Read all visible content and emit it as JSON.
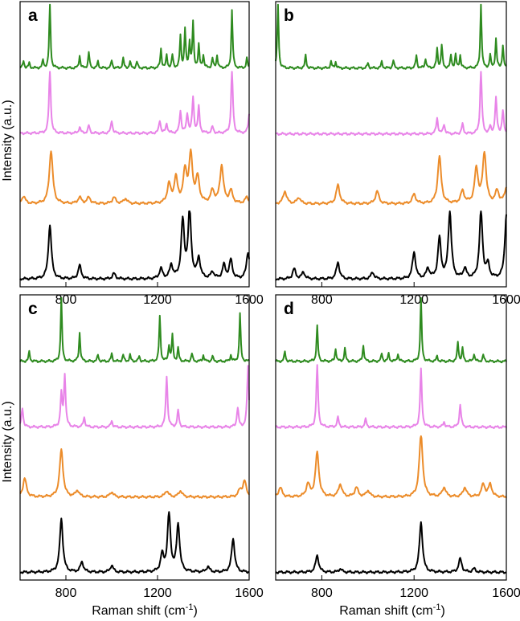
{
  "figure": {
    "ylabel": "Intensity (a.u.)",
    "xlabel_main": "Raman shift (cm",
    "xlabel_sup": "-1",
    "xlabel_close": ")"
  },
  "colors": {
    "green": "#2e8b1f",
    "violet": "#e884e8",
    "orange": "#ec8c2a",
    "black": "#000000"
  },
  "chart_data": [
    {
      "type": "line",
      "panel": "a",
      "xlim": [
        600,
        1600
      ],
      "xticks": [
        800,
        1200,
        1600
      ],
      "y_scale": "arbitrary units, traces vertically offset",
      "series": [
        {
          "color": "green",
          "baseline": 0.03,
          "peaks": [
            [
              615,
              0.12
            ],
            [
              640,
              0.08
            ],
            [
              700,
              0.12
            ],
            [
              730,
              1.0
            ],
            [
              860,
              0.2
            ],
            [
              900,
              0.25
            ],
            [
              940,
              0.1
            ],
            [
              1000,
              0.12
            ],
            [
              1050,
              0.15
            ],
            [
              1080,
              0.1
            ],
            [
              1110,
              0.1
            ],
            [
              1215,
              0.3
            ],
            [
              1240,
              0.2
            ],
            [
              1265,
              0.2
            ],
            [
              1300,
              0.5
            ],
            [
              1320,
              0.6
            ],
            [
              1340,
              0.4
            ],
            [
              1355,
              0.7
            ],
            [
              1380,
              0.35
            ],
            [
              1400,
              0.2
            ],
            [
              1440,
              0.15
            ],
            [
              1460,
              0.2
            ],
            [
              1525,
              0.9
            ],
            [
              1590,
              0.15
            ]
          ]
        },
        {
          "color": "violet",
          "baseline": 0.06,
          "peaks": [
            [
              730,
              1.0
            ],
            [
              860,
              0.1
            ],
            [
              900,
              0.12
            ],
            [
              1000,
              0.2
            ],
            [
              1210,
              0.2
            ],
            [
              1240,
              0.15
            ],
            [
              1300,
              0.35
            ],
            [
              1330,
              0.3
            ],
            [
              1355,
              0.55
            ],
            [
              1380,
              0.4
            ],
            [
              1440,
              0.1
            ],
            [
              1525,
              1.0
            ],
            [
              1600,
              0.3
            ]
          ]
        },
        {
          "color": "orange",
          "baseline": 0.05,
          "peaks": [
            [
              615,
              0.12
            ],
            [
              735,
              0.85
            ],
            [
              860,
              0.1
            ],
            [
              900,
              0.1
            ],
            [
              1010,
              0.1
            ],
            [
              1060,
              0.08
            ],
            [
              1250,
              0.3
            ],
            [
              1280,
              0.4
            ],
            [
              1320,
              0.5
            ],
            [
              1345,
              0.75
            ],
            [
              1375,
              0.4
            ],
            [
              1440,
              0.2
            ],
            [
              1480,
              0.6
            ],
            [
              1520,
              0.2
            ],
            [
              1590,
              0.1
            ]
          ]
        },
        {
          "color": "black",
          "baseline": 0.01,
          "peaks": [
            [
              730,
              0.8
            ],
            [
              860,
              0.2
            ],
            [
              1010,
              0.08
            ],
            [
              1215,
              0.15
            ],
            [
              1260,
              0.2
            ],
            [
              1310,
              0.85
            ],
            [
              1340,
              1.0
            ],
            [
              1380,
              0.3
            ],
            [
              1440,
              0.1
            ],
            [
              1490,
              0.2
            ],
            [
              1520,
              0.28
            ],
            [
              1595,
              0.4
            ]
          ]
        }
      ]
    },
    {
      "type": "line",
      "panel": "b",
      "xlim": [
        600,
        1600
      ],
      "xticks": [
        800,
        1200,
        1600
      ],
      "y_scale": "arbitrary units, traces vertically offset",
      "series": [
        {
          "color": "green",
          "baseline": 0.03,
          "peaks": [
            [
              610,
              1.0
            ],
            [
              730,
              0.2
            ],
            [
              840,
              0.1
            ],
            [
              860,
              0.1
            ],
            [
              1000,
              0.08
            ],
            [
              1060,
              0.1
            ],
            [
              1110,
              0.12
            ],
            [
              1210,
              0.2
            ],
            [
              1250,
              0.15
            ],
            [
              1300,
              0.3
            ],
            [
              1320,
              0.35
            ],
            [
              1360,
              0.2
            ],
            [
              1380,
              0.2
            ],
            [
              1400,
              0.2
            ],
            [
              1490,
              1.0
            ],
            [
              1530,
              0.2
            ],
            [
              1555,
              0.45
            ],
            [
              1585,
              0.35
            ]
          ]
        },
        {
          "color": "violet",
          "baseline": 0.05,
          "peaks": [
            [
              1300,
              0.25
            ],
            [
              1330,
              0.15
            ],
            [
              1410,
              0.15
            ],
            [
              1490,
              1.0
            ],
            [
              1530,
              0.1
            ],
            [
              1555,
              0.55
            ],
            [
              1585,
              0.35
            ]
          ]
        },
        {
          "color": "orange",
          "baseline": 0.05,
          "peaks": [
            [
              640,
              0.2
            ],
            [
              700,
              0.1
            ],
            [
              870,
              0.3
            ],
            [
              1040,
              0.2
            ],
            [
              1200,
              0.15
            ],
            [
              1310,
              0.75
            ],
            [
              1410,
              0.2
            ],
            [
              1470,
              0.55
            ],
            [
              1505,
              0.8
            ],
            [
              1560,
              0.2
            ],
            [
              1600,
              0.25
            ]
          ]
        },
        {
          "color": "black",
          "baseline": 0.01,
          "peaks": [
            [
              680,
              0.15
            ],
            [
              720,
              0.1
            ],
            [
              870,
              0.25
            ],
            [
              1020,
              0.1
            ],
            [
              1200,
              0.4
            ],
            [
              1260,
              0.15
            ],
            [
              1310,
              0.6
            ],
            [
              1355,
              1.0
            ],
            [
              1420,
              0.15
            ],
            [
              1490,
              1.0
            ],
            [
              1520,
              0.2
            ],
            [
              1600,
              0.95
            ]
          ]
        }
      ]
    },
    {
      "type": "line",
      "panel": "c",
      "xlim": [
        600,
        1600
      ],
      "xticks": [
        800,
        1200,
        1600
      ],
      "y_scale": "arbitrary units, traces vertically offset",
      "series": [
        {
          "color": "green",
          "baseline": 0.03,
          "peaks": [
            [
              640,
              0.15
            ],
            [
              780,
              1.0
            ],
            [
              860,
              0.45
            ],
            [
              940,
              0.1
            ],
            [
              1000,
              0.12
            ],
            [
              1050,
              0.1
            ],
            [
              1080,
              0.1
            ],
            [
              1120,
              0.08
            ],
            [
              1210,
              0.7
            ],
            [
              1250,
              0.25
            ],
            [
              1265,
              0.4
            ],
            [
              1290,
              0.2
            ],
            [
              1350,
              0.12
            ],
            [
              1400,
              0.1
            ],
            [
              1440,
              0.08
            ],
            [
              1520,
              0.1
            ],
            [
              1560,
              0.75
            ]
          ]
        },
        {
          "color": "violet",
          "baseline": 0.05,
          "peaks": [
            [
              610,
              0.3
            ],
            [
              780,
              0.5
            ],
            [
              795,
              0.8
            ],
            [
              880,
              0.15
            ],
            [
              1000,
              0.1
            ],
            [
              1240,
              0.8
            ],
            [
              1290,
              0.25
            ],
            [
              1550,
              0.3
            ],
            [
              1595,
              0.95
            ]
          ]
        },
        {
          "color": "orange",
          "baseline": 0.05,
          "peaks": [
            [
              620,
              0.3
            ],
            [
              780,
              0.75
            ],
            [
              850,
              0.1
            ],
            [
              1000,
              0.08
            ],
            [
              1240,
              0.1
            ],
            [
              1300,
              0.1
            ],
            [
              1560,
              0.1
            ],
            [
              1580,
              0.25
            ]
          ]
        },
        {
          "color": "black",
          "baseline": 0.01,
          "peaks": [
            [
              780,
              0.8
            ],
            [
              870,
              0.15
            ],
            [
              1000,
              0.1
            ],
            [
              1220,
              0.25
            ],
            [
              1250,
              0.85
            ],
            [
              1290,
              0.7
            ],
            [
              1420,
              0.08
            ],
            [
              1530,
              0.5
            ]
          ]
        }
      ]
    },
    {
      "type": "line",
      "panel": "d",
      "xlim": [
        600,
        1600
      ],
      "xticks": [
        800,
        1200,
        1600
      ],
      "y_scale": "arbitrary units, traces vertically offset",
      "series": [
        {
          "color": "green",
          "baseline": 0.03,
          "peaks": [
            [
              640,
              0.15
            ],
            [
              780,
              0.55
            ],
            [
              860,
              0.2
            ],
            [
              900,
              0.2
            ],
            [
              980,
              0.25
            ],
            [
              1060,
              0.12
            ],
            [
              1090,
              0.12
            ],
            [
              1130,
              0.12
            ],
            [
              1230,
              1.0
            ],
            [
              1300,
              0.08
            ],
            [
              1390,
              0.3
            ],
            [
              1410,
              0.2
            ],
            [
              1460,
              0.12
            ],
            [
              1500,
              0.1
            ]
          ]
        },
        {
          "color": "violet",
          "baseline": 0.05,
          "peaks": [
            [
              780,
              0.95
            ],
            [
              870,
              0.15
            ],
            [
              990,
              0.12
            ],
            [
              1230,
              0.9
            ],
            [
              1330,
              0.08
            ],
            [
              1400,
              0.35
            ]
          ]
        },
        {
          "color": "orange",
          "baseline": 0.05,
          "peaks": [
            [
              620,
              0.15
            ],
            [
              740,
              0.2
            ],
            [
              780,
              0.7
            ],
            [
              880,
              0.2
            ],
            [
              950,
              0.15
            ],
            [
              1000,
              0.1
            ],
            [
              1230,
              1.0
            ],
            [
              1330,
              0.15
            ],
            [
              1420,
              0.15
            ],
            [
              1500,
              0.2
            ],
            [
              1530,
              0.2
            ]
          ]
        },
        {
          "color": "black",
          "baseline": 0.01,
          "peaks": [
            [
              780,
              0.25
            ],
            [
              880,
              0.05
            ],
            [
              1230,
              0.75
            ],
            [
              1400,
              0.2
            ],
            [
              1460,
              0.05
            ]
          ]
        }
      ]
    }
  ]
}
